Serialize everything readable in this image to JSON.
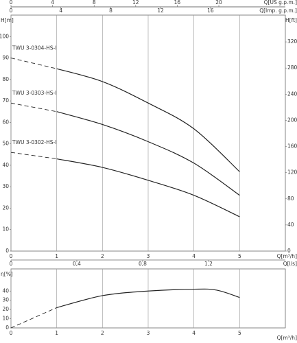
{
  "chart_data": [
    {
      "type": "line",
      "x_label": "Q[m³/h]",
      "y_label": "H[m]",
      "y2_label": "H[ft]",
      "x": [
        0,
        1,
        2,
        3,
        4,
        5
      ],
      "xlim": [
        0,
        6
      ],
      "xticks": [
        0,
        1,
        2,
        3,
        4,
        5
      ],
      "ylim": [
        0,
        110
      ],
      "yticks": [
        0,
        10,
        20,
        30,
        40,
        50,
        60,
        70,
        80,
        90,
        100
      ],
      "y2lim": [
        0,
        361
      ],
      "y2ticks": [
        0,
        40,
        80,
        120,
        160,
        200,
        240,
        280,
        320
      ],
      "grid": true,
      "top_axes": [
        {
          "label": "Q[US g.p.m.]",
          "xlim": [
            0,
            26.4
          ],
          "xticks": [
            0,
            4,
            8,
            12,
            16,
            20
          ]
        },
        {
          "label": "Q[Imp. g.p.m.]",
          "xlim": [
            0,
            22
          ],
          "xticks": [
            0,
            4,
            8,
            12,
            16
          ]
        }
      ],
      "series": [
        {
          "name": "TWU 3-0304-HS-I",
          "color": "#222222",
          "values": [
            90,
            85,
            79,
            69,
            57,
            37
          ]
        },
        {
          "name": "TWU 3-0303-HS-I",
          "color": "#222222",
          "values": [
            69,
            65,
            59,
            51,
            41,
            26
          ]
        },
        {
          "name": "TWU 3-0302-HS-I",
          "color": "#222222",
          "values": [
            46,
            43,
            39,
            33,
            26,
            16
          ]
        }
      ]
    },
    {
      "type": "line",
      "x_label": "Q[m³/h]",
      "y_label": "η[%]",
      "x": [
        0,
        1,
        2,
        3,
        4,
        4.5,
        5
      ],
      "xlim": [
        0,
        6
      ],
      "xticks": [
        0,
        1,
        2,
        3,
        4,
        5
      ],
      "ylim": [
        0,
        64
      ],
      "yticks": [
        0,
        10,
        20,
        30,
        40
      ],
      "grid": true,
      "top_axes": [
        {
          "label": "Q[l/s]",
          "xlim": [
            0,
            1.667
          ],
          "xticks": [
            0,
            {
              "value": 0.4,
              "label": "0,4"
            },
            {
              "value": 0.8,
              "label": "0,8"
            },
            {
              "value": 1.2,
              "label": "1,2"
            }
          ]
        }
      ],
      "series": [
        {
          "color": "#222222",
          "values": [
            0,
            22,
            35,
            40,
            42,
            41,
            33
          ]
        }
      ]
    }
  ]
}
